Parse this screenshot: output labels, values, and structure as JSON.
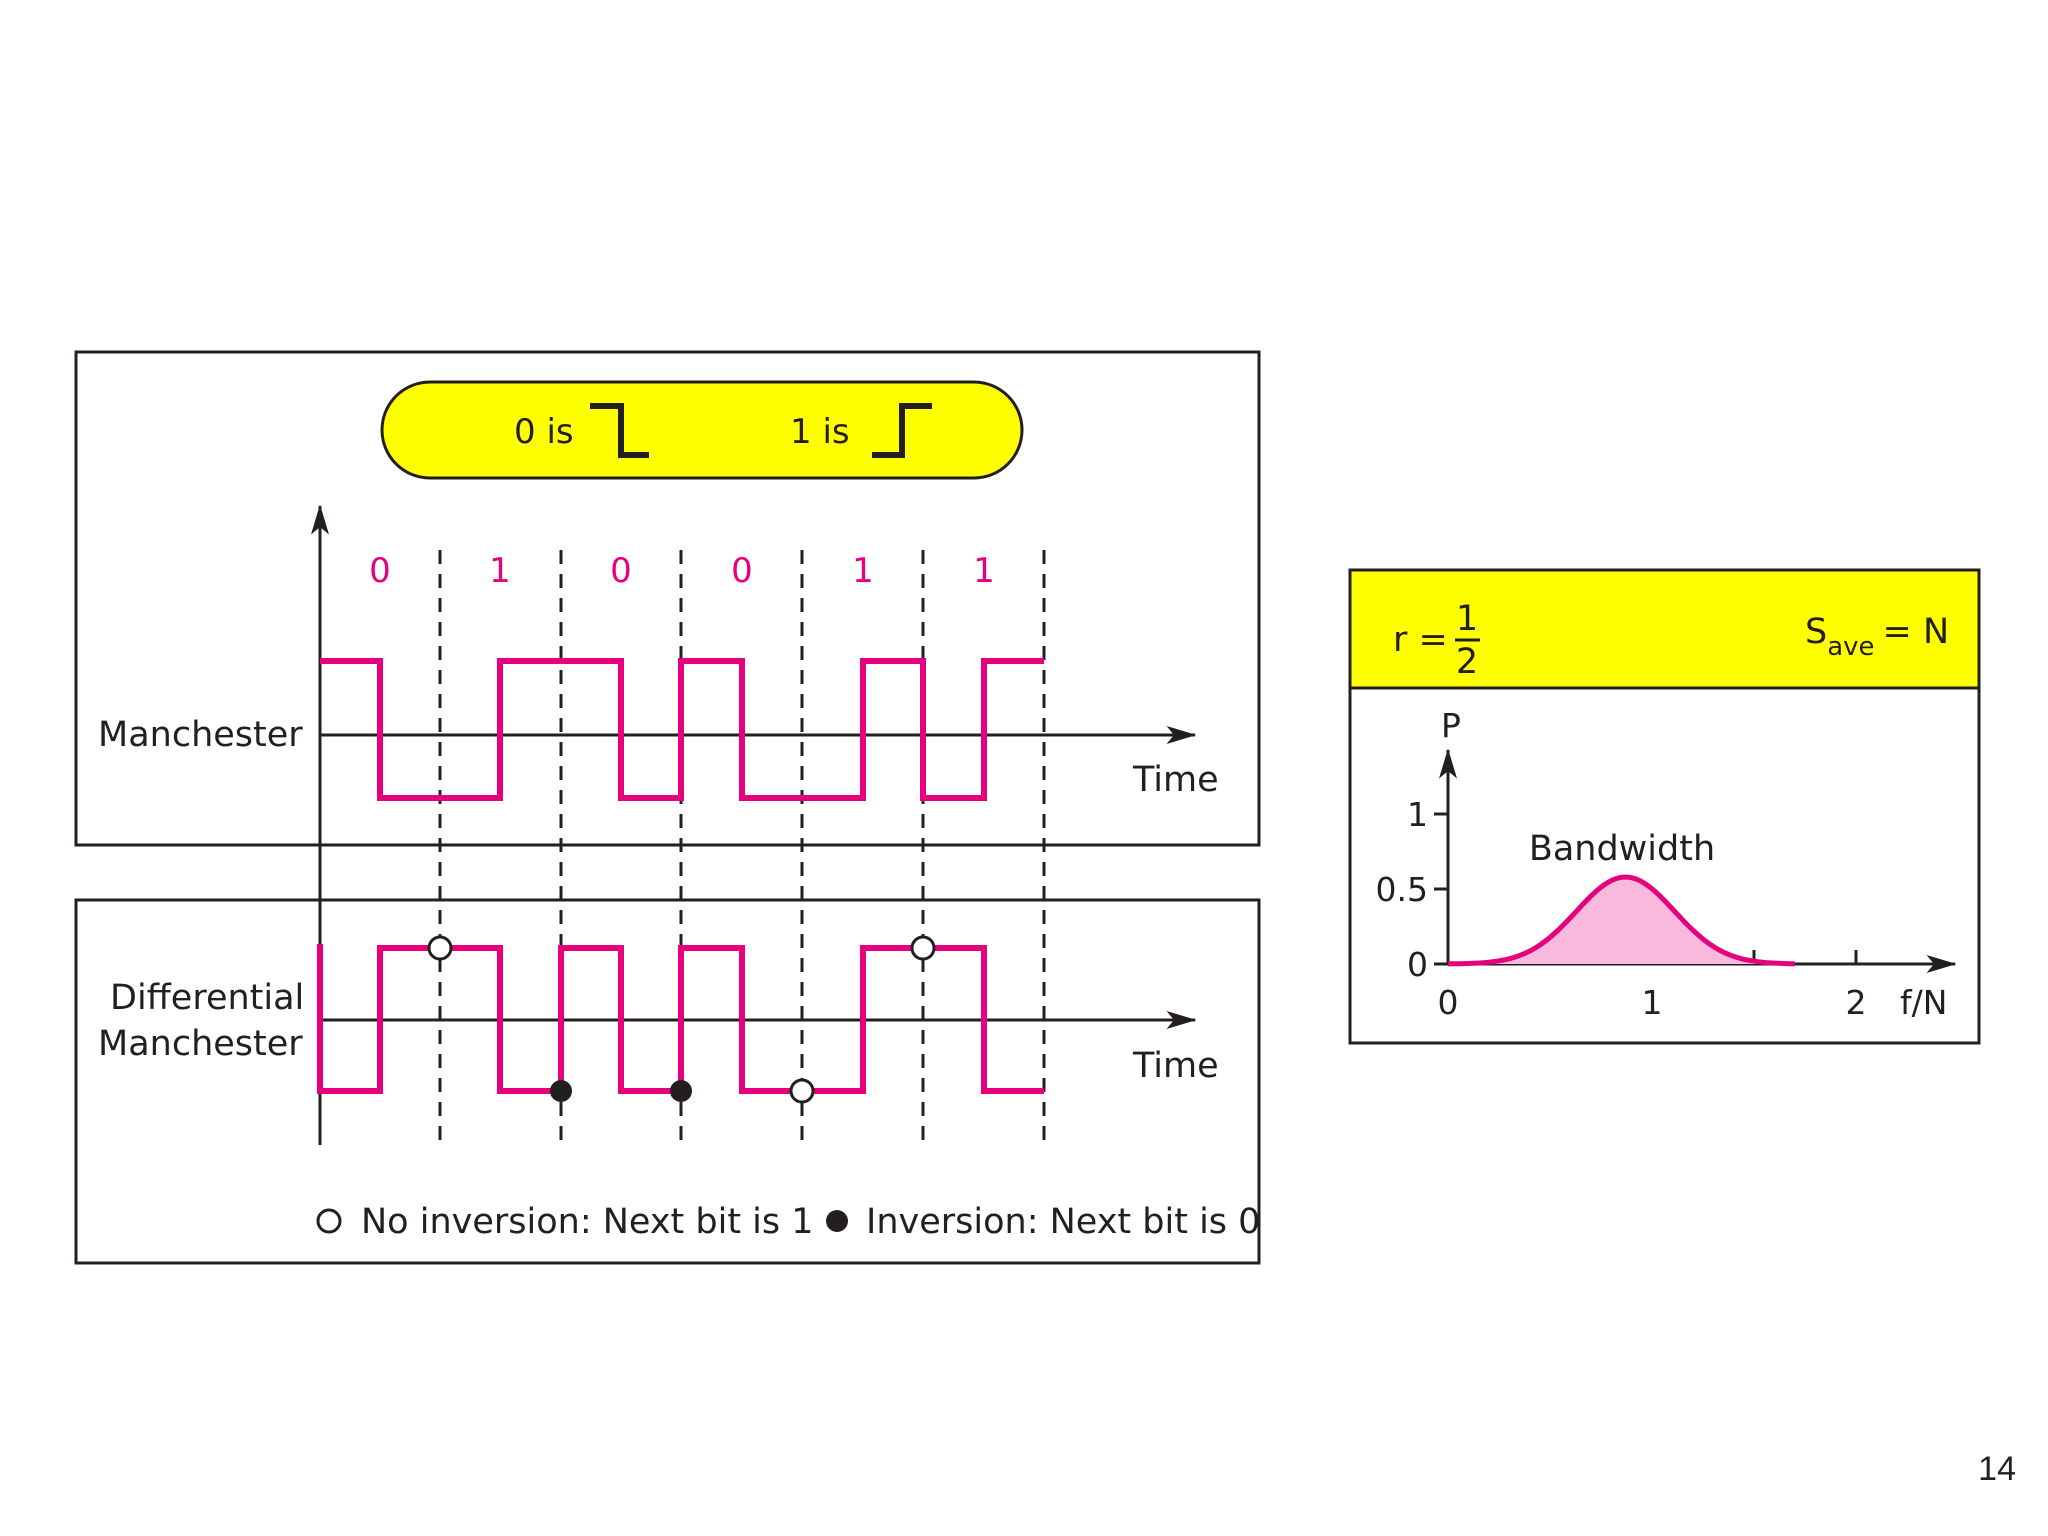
{
  "legend_box": {
    "zero_label": "0 is",
    "one_label": "1 is",
    "fill": "#ffff00"
  },
  "bits": [
    "0",
    "1",
    "0",
    "0",
    "1",
    "1"
  ],
  "manchester": {
    "label": "Manchester",
    "time_label": "Time"
  },
  "differential": {
    "label_line1": "Differential",
    "label_line2": "Manchester",
    "time_label": "Time",
    "legend_open": "No inversion: Next bit is 1",
    "legend_filled": "Inversion: Next bit is 0"
  },
  "spectrum": {
    "r_label": "r =",
    "r_num": "1",
    "r_den": "2",
    "s_label": "S",
    "s_sub": "ave",
    "s_rhs": "= N",
    "p_label": "P",
    "y_ticks": [
      "1",
      "0.5",
      "0"
    ],
    "x_ticks": [
      "0",
      "1",
      "2"
    ],
    "x_label": "f/N",
    "bandwidth_label": "Bandwidth",
    "header_fill": "#ffff00"
  },
  "colors": {
    "signal": "#e6007e",
    "fill_pink": "#f9b9dc",
    "ink": "#231f20"
  },
  "page_number": "14"
}
